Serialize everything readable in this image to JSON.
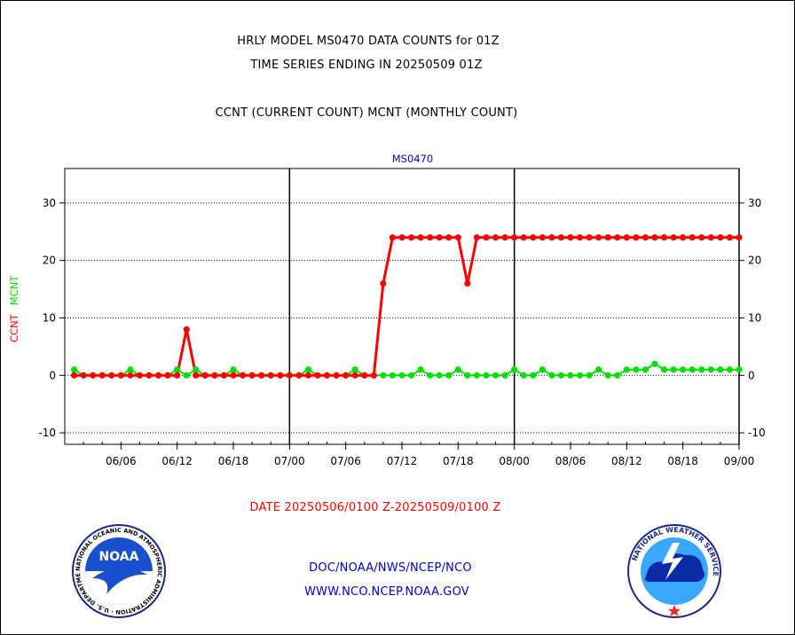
{
  "header": {
    "title_line1": "HRLY MODEL MS0470 DATA COUNTS for 01Z",
    "title_line2": "TIME SERIES ENDING IN 20250509 01Z",
    "subtitle": "CCNT (CURRENT COUNT) MCNT (MONTHLY COUNT)"
  },
  "footer": {
    "date_range": "DATE 20250506/0100 Z-20250509/0100 Z",
    "link1": "DOC/NOAA/NWS/NCEP/NCO",
    "link2": "WWW.NCO.NCEP.NOAA.GOV",
    "noaa_logo_text": "NOAA",
    "noaa_ring_text": "NATIONAL OCEANIC AND ATMOSPHERIC ADMINISTRATION · U.S. DEPARTMENT OF COMMERCE",
    "nws_ring_text": "NATIONAL WEATHER SERVICE"
  },
  "chart_data": {
    "type": "line",
    "title": "MS0470",
    "ylabel_ccnt": "CCNT",
    "ylabel_mcnt": "MCNT",
    "xlim": [
      -1,
      71
    ],
    "ylim": [
      -12,
      36
    ],
    "yticks": [
      -10,
      0,
      10,
      20,
      30
    ],
    "grid": true,
    "x_tick_labels": [
      {
        "x": 5,
        "label": "06/06"
      },
      {
        "x": 11,
        "label": "06/12"
      },
      {
        "x": 17,
        "label": "06/18"
      },
      {
        "x": 23,
        "label": "07/00"
      },
      {
        "x": 29,
        "label": "07/06"
      },
      {
        "x": 35,
        "label": "07/12"
      },
      {
        "x": 41,
        "label": "07/18"
      },
      {
        "x": 47,
        "label": "08/00"
      },
      {
        "x": 53,
        "label": "08/06"
      },
      {
        "x": 59,
        "label": "08/12"
      },
      {
        "x": 65,
        "label": "08/18"
      },
      {
        "x": 71,
        "label": "09/00"
      }
    ],
    "day_boundaries": [
      23,
      47,
      71
    ],
    "series": [
      {
        "name": "CCNT",
        "color": "#ff0000",
        "values": [
          0,
          0,
          0,
          0,
          0,
          0,
          0,
          0,
          0,
          0,
          0,
          0,
          8,
          0,
          0,
          0,
          0,
          0,
          0,
          0,
          0,
          0,
          0,
          0,
          0,
          0,
          0,
          0,
          0,
          0,
          0,
          0,
          0,
          16,
          24,
          24,
          24,
          24,
          24,
          24,
          24,
          24,
          16,
          24,
          24,
          24,
          24,
          24,
          24,
          24,
          24,
          24,
          24,
          24,
          24,
          24,
          24,
          24,
          24,
          24,
          24,
          24,
          24,
          24,
          24,
          24,
          24,
          24,
          24,
          24,
          24,
          24
        ]
      },
      {
        "name": "MCNT",
        "color": "#00e000",
        "values": [
          1,
          0,
          0,
          0,
          0,
          0,
          1,
          0,
          0,
          0,
          0,
          1,
          0,
          1,
          0,
          0,
          0,
          1,
          0,
          0,
          0,
          0,
          0,
          0,
          0,
          1,
          0,
          0,
          0,
          0,
          1,
          0,
          0,
          0,
          0,
          0,
          0,
          1,
          0,
          0,
          0,
          1,
          0,
          0,
          0,
          0,
          0,
          1,
          0,
          0,
          1,
          0,
          0,
          0,
          0,
          0,
          1,
          0,
          0,
          1,
          1,
          1,
          2,
          1,
          1,
          1,
          1,
          1,
          1,
          1,
          1,
          1
        ]
      }
    ]
  },
  "colors": {
    "red": "#ff0000",
    "green": "#00e000",
    "blue": "#0000cc",
    "axis": "#000000"
  }
}
